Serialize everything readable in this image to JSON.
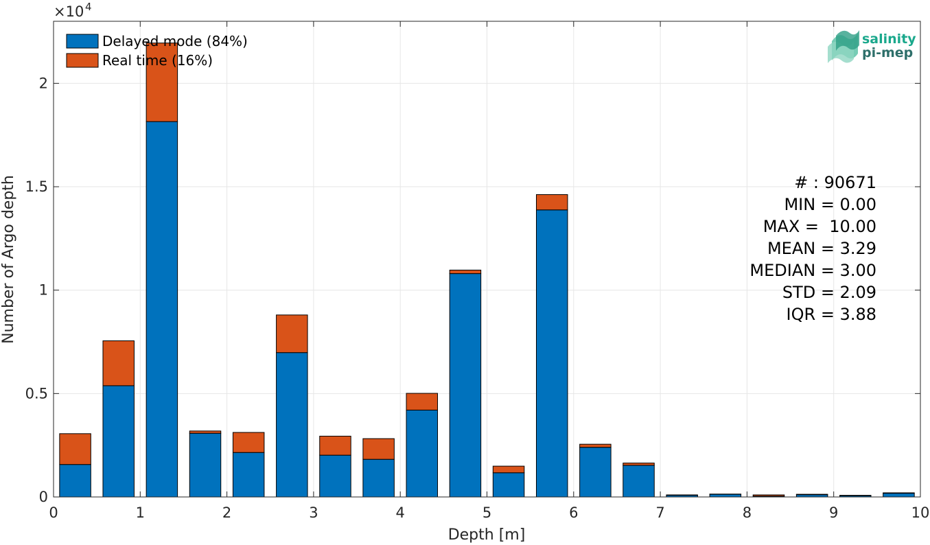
{
  "chart_data": {
    "type": "bar",
    "stacked": true,
    "xlabel": "Depth [m]",
    "ylabel": "Number of Argo depth",
    "xlim": [
      0,
      10
    ],
    "ylim": [
      0,
      23000
    ],
    "y_exponent_label": "×10",
    "y_exponent_power": "4",
    "grid": true,
    "legend_position": "top-left",
    "x_ticks": [
      0,
      1,
      2,
      3,
      4,
      5,
      6,
      7,
      8,
      9,
      10
    ],
    "x_tick_labels": [
      "0",
      "1",
      "2",
      "3",
      "4",
      "5",
      "6",
      "7",
      "8",
      "9",
      "10"
    ],
    "y_ticks": [
      0,
      5000,
      10000,
      15000,
      20000
    ],
    "y_tick_labels": [
      "0",
      "0.5",
      "1",
      "1.5",
      "2"
    ],
    "bin_width": 0.5,
    "bin_centers": [
      0.25,
      0.75,
      1.25,
      1.75,
      2.25,
      2.75,
      3.25,
      3.75,
      4.25,
      4.75,
      5.25,
      5.75,
      6.25,
      6.75,
      7.25,
      7.75,
      8.25,
      8.75,
      9.25,
      9.75
    ],
    "series": [
      {
        "name": "Delayed mode (84%)",
        "color": "#0072BD",
        "values": [
          1570,
          5380,
          18150,
          3080,
          2150,
          6980,
          2020,
          1820,
          4200,
          10800,
          1170,
          13880,
          2400,
          1530,
          80,
          130,
          40,
          110,
          60,
          180
        ]
      },
      {
        "name": "Real time (16%)",
        "color": "#D95319",
        "values": [
          1490,
          2170,
          3800,
          110,
          970,
          1820,
          920,
          1000,
          810,
          170,
          320,
          740,
          150,
          110,
          20,
          10,
          60,
          20,
          20,
          20
        ]
      }
    ]
  },
  "stats": [
    "# : 90671",
    "MIN = 0.00",
    "MAX =  10.00",
    "MEAN = 3.29",
    "MEDIAN = 3.00",
    "STD = 2.09",
    "IQR = 3.88"
  ],
  "logo": {
    "line1": "salinity",
    "line2": "pi-mep",
    "color1": "#1aa88c",
    "color2": "#2e6f6a"
  }
}
